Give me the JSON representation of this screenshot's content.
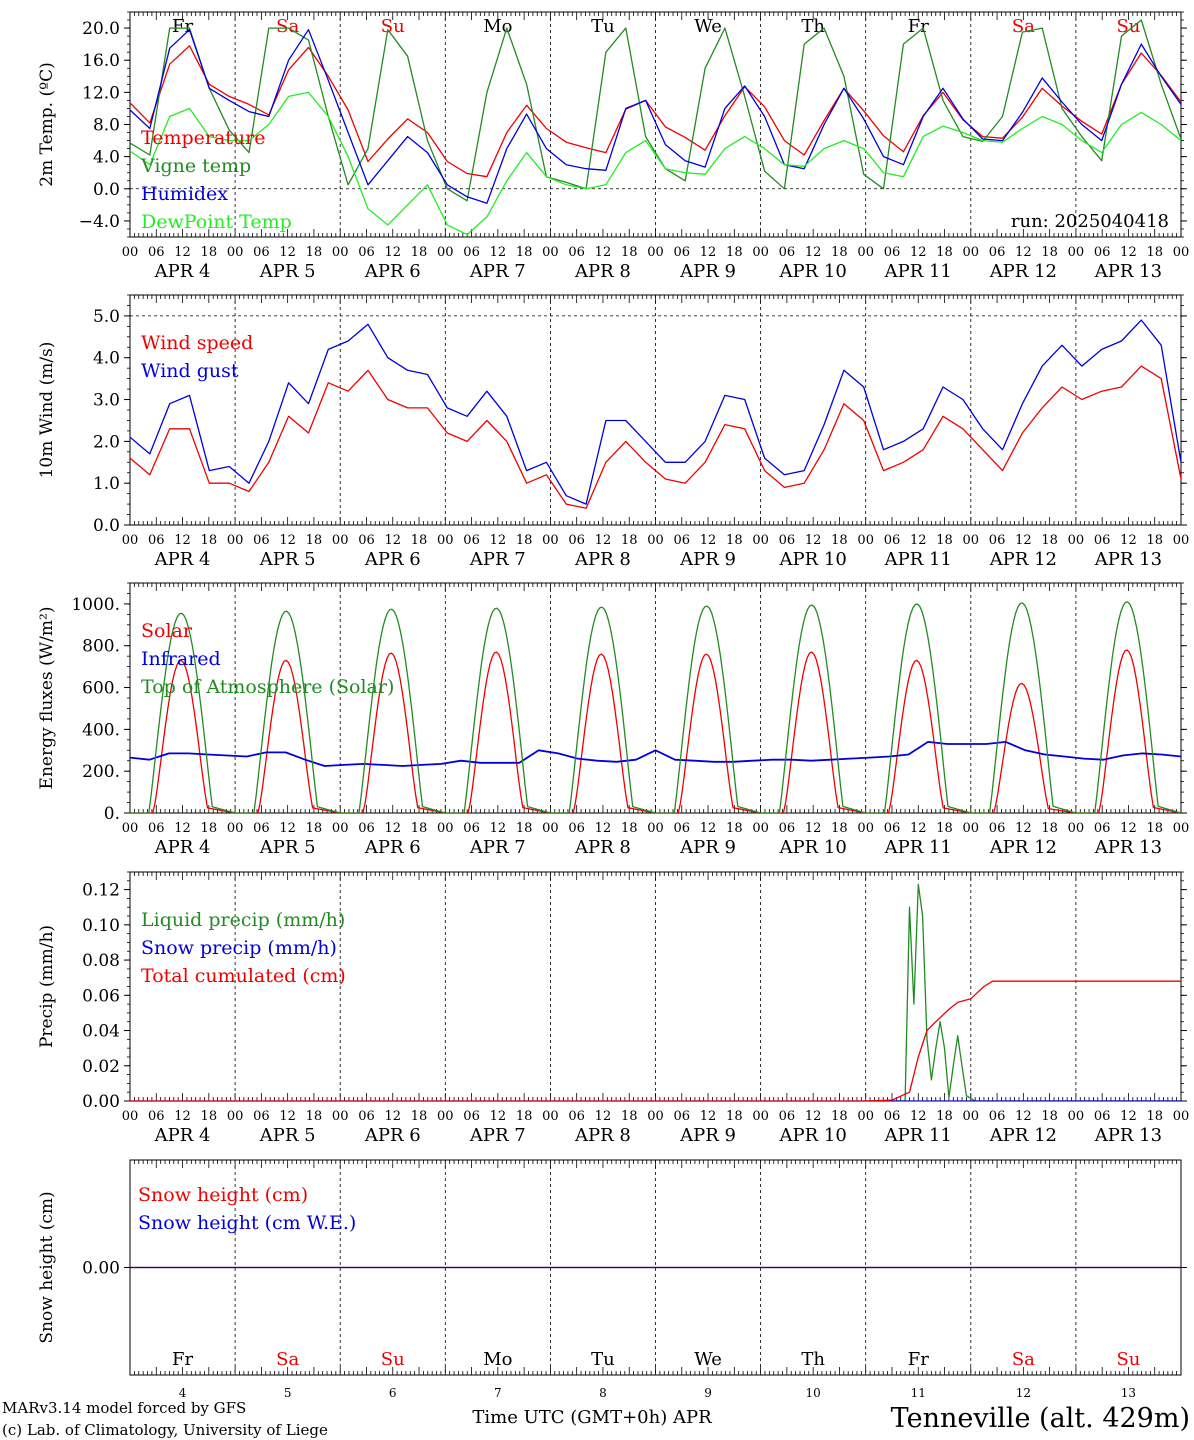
{
  "days": [
    {
      "name": "Fr",
      "date": "4",
      "label": "APR  4",
      "weekend": false
    },
    {
      "name": "Sa",
      "date": "5",
      "label": "APR  5",
      "weekend": true
    },
    {
      "name": "Su",
      "date": "6",
      "label": "APR  6",
      "weekend": true
    },
    {
      "name": "Mo",
      "date": "7",
      "label": "APR  7",
      "weekend": false
    },
    {
      "name": "Tu",
      "date": "8",
      "label": "APR  8",
      "weekend": false
    },
    {
      "name": "We",
      "date": "9",
      "label": "APR  9",
      "weekend": false
    },
    {
      "name": "Th",
      "date": "10",
      "label": "APR 10",
      "weekend": false
    },
    {
      "name": "Fr",
      "date": "11",
      "label": "APR 11",
      "weekend": false
    },
    {
      "name": "Sa",
      "date": "12",
      "label": "APR 12",
      "weekend": true
    },
    {
      "name": "Su",
      "date": "13",
      "label": "APR 13",
      "weekend": true
    }
  ],
  "hour_ticks": [
    "00",
    "06",
    "12",
    "18"
  ],
  "colors": {
    "red": "#ee0000",
    "green": "#228b22",
    "blue": "#0000dd",
    "lightgreen": "#22ee22",
    "weekend": "#ee0000",
    "weekday": "#000000"
  },
  "footer": {
    "credit1": "MARv3.14 model forced by GFS",
    "credit2": "(c) Lab. of Climatology, University of Liege",
    "xlabel": "Time UTC (GMT+0h) APR",
    "station": "Tenneville (alt. 429m)"
  },
  "chart_data": [
    {
      "type": "line",
      "id": "temp",
      "ylabel": "2m Temp. (ºC)",
      "yticks": [
        "20.0",
        "16.0",
        "12.0",
        "8.0",
        "4.0",
        "0.0",
        "−4.0"
      ],
      "ylim": [
        -6,
        22
      ],
      "annotation": "run: 2025040418",
      "x_step_hours": 6,
      "series": [
        {
          "name": "Temperature",
          "color": "red",
          "values": [
            10.7,
            8.2,
            15.5,
            17.8,
            13.0,
            11.5,
            10.5,
            9.2,
            14.8,
            17.6,
            14.0,
            9.8,
            3.4,
            6.2,
            8.7,
            7.0,
            3.4,
            1.9,
            1.5,
            7.0,
            10.4,
            7.5,
            5.8,
            5.1,
            4.5,
            9.9,
            11.0,
            7.7,
            6.4,
            4.8,
            9.1,
            12.7,
            10.2,
            6.0,
            4.2,
            8.5,
            12.5,
            9.7,
            6.6,
            4.6,
            9.1,
            12.0,
            8.6,
            6.5,
            6.3,
            8.9,
            12.5,
            10.3,
            8.4,
            6.8,
            13.0,
            16.9,
            14.1,
            10.8
          ]
        },
        {
          "name": "Vigne temp",
          "color": "green",
          "values": [
            5.7,
            4.2,
            20.0,
            20.0,
            12.5,
            7.3,
            4.5,
            20.0,
            20.0,
            18.5,
            9.0,
            0.5,
            5.0,
            19.8,
            16.5,
            6.0,
            0.0,
            -1.5,
            12.0,
            20.0,
            13.0,
            1.5,
            0.8,
            0.0,
            17.0,
            20.0,
            6.5,
            2.5,
            1.0,
            15.0,
            20.0,
            11.5,
            2.2,
            0.0,
            18.0,
            20.0,
            14.0,
            1.8,
            0.0,
            18.0,
            20.0,
            11.0,
            6.5,
            5.9,
            9.0,
            19.5,
            20.0,
            10.0,
            6.5,
            3.5,
            19.0,
            21.0,
            13.0,
            6.2
          ]
        },
        {
          "name": "Humidex",
          "color": "blue",
          "values": [
            9.8,
            7.5,
            17.5,
            19.8,
            12.5,
            11.0,
            9.6,
            9.0,
            16.0,
            19.8,
            13.5,
            7.0,
            0.5,
            3.5,
            6.5,
            4.5,
            0.5,
            -1.0,
            -1.8,
            5.0,
            9.3,
            5.0,
            3.0,
            2.5,
            2.3,
            10.0,
            11.0,
            5.5,
            3.5,
            2.7,
            10.0,
            12.8,
            9.0,
            3.0,
            2.5,
            8.0,
            12.5,
            8.7,
            4.0,
            3.0,
            9.0,
            12.5,
            8.7,
            6.2,
            6.0,
            9.5,
            13.8,
            10.8,
            8.0,
            6.0,
            13.0,
            18.0,
            14.0,
            10.5
          ]
        },
        {
          "name": "DewPoint Temp",
          "color": "lightgreen",
          "values": [
            4.7,
            3.0,
            9.0,
            10.0,
            6.5,
            6.0,
            6.0,
            8.0,
            11.5,
            12.0,
            9.0,
            4.0,
            -2.5,
            -4.5,
            -2.0,
            0.5,
            -4.5,
            -5.7,
            -3.5,
            1.0,
            4.5,
            1.5,
            0.5,
            0.0,
            0.5,
            4.5,
            6.0,
            2.5,
            2.0,
            1.8,
            5.0,
            6.5,
            5.0,
            3.0,
            2.8,
            5.0,
            6.0,
            5.0,
            2.0,
            1.5,
            6.5,
            7.8,
            7.0,
            6.0,
            5.8,
            7.5,
            9.0,
            8.0,
            6.0,
            4.5,
            8.0,
            9.5,
            8.0,
            6.0
          ]
        }
      ]
    },
    {
      "type": "line",
      "id": "wind",
      "ylabel": "10m Wind (m/s)",
      "yticks": [
        "5.0",
        "4.0",
        "3.0",
        "2.0",
        "1.0",
        "0.0"
      ],
      "ylim": [
        0,
        5.5
      ],
      "x_step_hours": 6,
      "series": [
        {
          "name": "Wind speed",
          "color": "red",
          "values": [
            1.6,
            1.2,
            2.3,
            2.3,
            1.0,
            1.0,
            0.8,
            1.5,
            2.6,
            2.2,
            3.4,
            3.2,
            3.7,
            3.0,
            2.8,
            2.8,
            2.2,
            2.0,
            2.5,
            2.0,
            1.0,
            1.2,
            0.5,
            0.4,
            1.5,
            2.0,
            1.5,
            1.1,
            1.0,
            1.5,
            2.4,
            2.3,
            1.3,
            0.9,
            1.0,
            1.8,
            2.9,
            2.5,
            1.3,
            1.5,
            1.8,
            2.6,
            2.3,
            1.8,
            1.3,
            2.2,
            2.8,
            3.3,
            3.0,
            3.2,
            3.3,
            3.8,
            3.5,
            1.1
          ]
        },
        {
          "name": "Wind gust",
          "color": "blue",
          "values": [
            2.1,
            1.7,
            2.9,
            3.1,
            1.3,
            1.4,
            1.0,
            2.0,
            3.4,
            2.9,
            4.2,
            4.4,
            4.8,
            4.0,
            3.7,
            3.6,
            2.8,
            2.6,
            3.2,
            2.6,
            1.3,
            1.5,
            0.7,
            0.5,
            2.5,
            2.5,
            2.0,
            1.5,
            1.5,
            2.0,
            3.1,
            3.0,
            1.6,
            1.2,
            1.3,
            2.4,
            3.7,
            3.3,
            1.8,
            2.0,
            2.3,
            3.3,
            3.0,
            2.3,
            1.8,
            2.9,
            3.8,
            4.3,
            3.8,
            4.2,
            4.4,
            4.9,
            4.3,
            1.5
          ]
        }
      ]
    },
    {
      "type": "line",
      "id": "energy",
      "ylabel": "Energy fluxes (W/m²)",
      "yticks": [
        "1000.",
        "800.",
        "600.",
        "400.",
        "200.",
        "0."
      ],
      "ylim": [
        0,
        1100
      ],
      "x_step_hours": 1,
      "day_peaks": {
        "Solar": [
          730,
          730,
          765,
          770,
          760,
          760,
          770,
          730,
          620,
          780
        ],
        "Top of Atmosphere (Solar)": [
          955,
          965,
          975,
          980,
          985,
          990,
          995,
          1000,
          1005,
          1010
        ]
      },
      "series": [
        {
          "name": "Solar",
          "color": "red",
          "derived_from": "day_peaks"
        },
        {
          "name": "Infrared",
          "color": "blue",
          "values_6h": [
            265,
            255,
            285,
            285,
            280,
            275,
            270,
            290,
            290,
            255,
            225,
            230,
            235,
            230,
            225,
            230,
            235,
            250,
            240,
            240,
            240,
            300,
            285,
            260,
            250,
            245,
            255,
            300,
            255,
            250,
            245,
            245,
            250,
            255,
            255,
            250,
            255,
            260,
            265,
            270,
            280,
            340,
            330,
            330,
            330,
            340,
            300,
            280,
            270,
            260,
            255,
            275,
            285,
            280,
            270
          ]
        },
        {
          "name": "Top of Atmosphere (Solar)",
          "color": "green",
          "derived_from": "day_peaks"
        }
      ]
    },
    {
      "type": "line",
      "id": "precip",
      "ylabel": "Precip (mm/h)",
      "yticks": [
        "0.12",
        "0.10",
        "0.08",
        "0.06",
        "0.04",
        "0.02",
        "0.00"
      ],
      "ylim": [
        0,
        0.13
      ],
      "x_step_hours": 6,
      "series": [
        {
          "name": "Liquid precip (mm/h)",
          "color": "green",
          "sparse": [
            [
              174,
              0
            ],
            [
              177,
              0
            ],
            [
              178,
              0.11
            ],
            [
              179,
              0.055
            ],
            [
              180,
              0.123
            ],
            [
              181,
              0.105
            ],
            [
              182,
              0.035
            ],
            [
              183,
              0.012
            ],
            [
              184,
              0.03
            ],
            [
              185,
              0.045
            ],
            [
              186,
              0.03
            ],
            [
              187,
              0.002
            ],
            [
              188,
              0.02
            ],
            [
              189,
              0.037
            ],
            [
              190,
              0.02
            ],
            [
              191,
              0.003
            ],
            [
              193,
              0
            ],
            [
              240,
              0
            ]
          ]
        },
        {
          "name": "Snow precip (mm/h)",
          "color": "blue",
          "sparse": [
            [
              0,
              0
            ],
            [
              240,
              0
            ]
          ]
        },
        {
          "name": "Total cumulated (cm)",
          "color": "red",
          "sparse": [
            [
              0,
              0
            ],
            [
              168,
              0
            ],
            [
              174,
              0.0005
            ],
            [
              178,
              0.005
            ],
            [
              180,
              0.025
            ],
            [
              182,
              0.04
            ],
            [
              184,
              0.045
            ],
            [
              187,
              0.052
            ],
            [
              189,
              0.056
            ],
            [
              192,
              0.058
            ],
            [
              195,
              0.065
            ],
            [
              197,
              0.068
            ],
            [
              240,
              0.068
            ]
          ]
        }
      ]
    },
    {
      "type": "line",
      "id": "snow",
      "ylabel": "Snow height (cm)",
      "yticks": [
        "0.00"
      ],
      "ylim": [
        -1,
        1
      ],
      "x_step_hours": 240,
      "series": [
        {
          "name": "Snow height (cm)",
          "color": "red",
          "values": [
            0,
            0
          ]
        },
        {
          "name": "Snow height (cm W.E.)",
          "color": "blue",
          "values": [
            0,
            0
          ]
        }
      ]
    }
  ]
}
